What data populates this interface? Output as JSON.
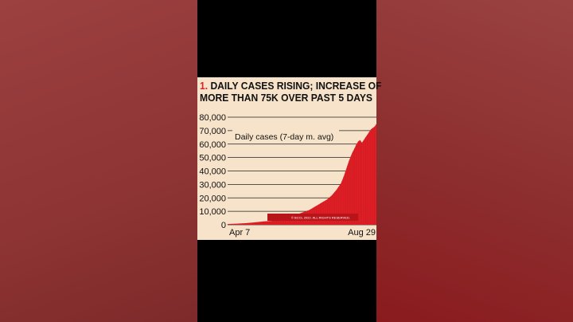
{
  "title_number": "1.",
  "title_line1": "DAILY CASES RISING; INCREASE OF",
  "title_line2": "MORE THAN 75K OVER PAST 5 DAYS",
  "colors": {
    "bar": "#e01f26",
    "bar_edge": "#b8151b",
    "card_bg": "#f6e3c9",
    "accent_number": "#d8232a"
  },
  "copyright": "© BCCL 2022. ALL RIGHTS RESERVED.",
  "chart_data": {
    "type": "area",
    "title": "DAILY CASES RISING; INCREASE OF MORE THAN 75K OVER PAST 5 DAYS",
    "series": [
      {
        "name": "Daily cases (7-day m. avg)",
        "points": [
          [
            0,
            500
          ],
          [
            10,
            800
          ],
          [
            20,
            1200
          ],
          [
            30,
            1800
          ],
          [
            40,
            2500
          ],
          [
            50,
            3000
          ],
          [
            60,
            4500
          ],
          [
            70,
            6000
          ],
          [
            80,
            8500
          ],
          [
            90,
            11000
          ],
          [
            100,
            15000
          ],
          [
            110,
            19000
          ],
          [
            115,
            22000
          ],
          [
            120,
            26000
          ],
          [
            125,
            31000
          ],
          [
            128,
            36000
          ],
          [
            131,
            42000
          ],
          [
            134,
            48000
          ],
          [
            137,
            53000
          ],
          [
            140,
            57000
          ],
          [
            142,
            60000
          ],
          [
            144,
            62000
          ],
          [
            146,
            63000
          ],
          [
            148,
            61000
          ],
          [
            150,
            63000
          ],
          [
            152,
            65000
          ],
          [
            154,
            67000
          ],
          [
            156,
            69000
          ],
          [
            158,
            71000
          ],
          [
            160,
            72000
          ],
          [
            162,
            73000
          ],
          [
            164,
            75000
          ]
        ]
      }
    ],
    "x_tick_labels": [
      "Apr 7",
      "Aug 29"
    ],
    "y_ticks": [
      "80,000",
      "70,000",
      "60,000",
      "50,000",
      "40,000",
      "30,000",
      "20,000",
      "10,000",
      "0"
    ],
    "y_tick_values": [
      80000,
      70000,
      60000,
      50000,
      40000,
      30000,
      20000,
      10000,
      0
    ],
    "ylim": [
      0,
      80000
    ],
    "x_range": [
      0,
      164
    ],
    "grid": true
  }
}
